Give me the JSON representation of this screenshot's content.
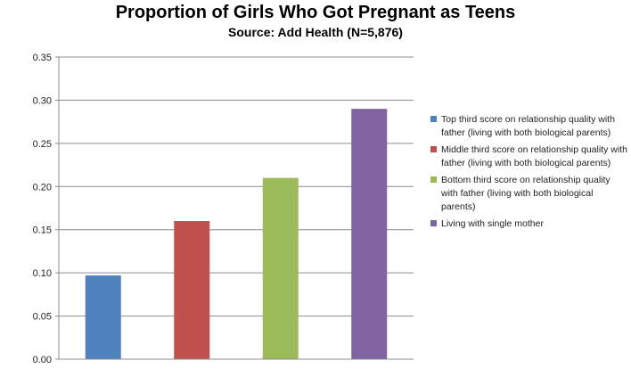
{
  "chart_data": {
    "type": "bar",
    "title": "Proportion of Girls Who Got Pregnant as Teens",
    "subtitle": "Source: Add Health (N=5,876)",
    "xlabel": "",
    "ylabel": "",
    "ylim": [
      0,
      0.35
    ],
    "y_ticks": [
      "0.00",
      "0.05",
      "0.10",
      "0.15",
      "0.20",
      "0.25",
      "0.30",
      "0.35"
    ],
    "grid": true,
    "legend_position": "right",
    "series": [
      {
        "name": "Top third score on relationship quality with father (living with both biological parents)",
        "value": 0.097,
        "color": "#4f81bd"
      },
      {
        "name": "Middle third score on relationship quality with father (living with both biological parents)",
        "value": 0.16,
        "color": "#c0504d"
      },
      {
        "name": "Bottom third score on relationship quality with father (living with both biological parents)",
        "value": 0.21,
        "color": "#9bbb59"
      },
      {
        "name": "Living with single mother",
        "value": 0.29,
        "color": "#8064a2"
      }
    ]
  }
}
